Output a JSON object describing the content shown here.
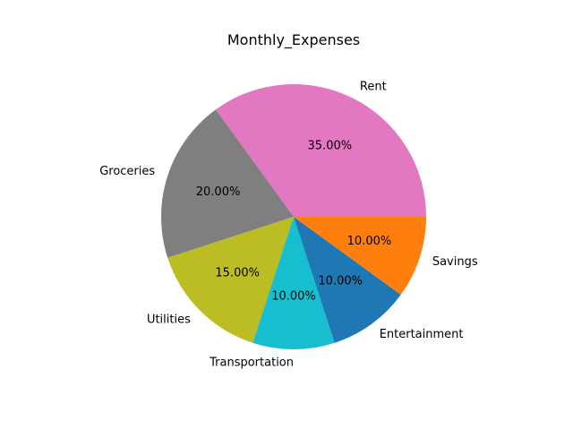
{
  "chart_data": {
    "type": "pie",
    "title": "Monthly_Expenses",
    "categories": [
      "Rent",
      "Groceries",
      "Utilities",
      "Transportation",
      "Entertainment",
      "Savings"
    ],
    "values": [
      35,
      20,
      15,
      10,
      10,
      10
    ],
    "percent_labels": [
      "35.00%",
      "20.00%",
      "15.00%",
      "10.00%",
      "10.00%",
      "10.00%"
    ],
    "colors": [
      "#e377c2",
      "#7f7f7f",
      "#bcbd22",
      "#17becf",
      "#1f77b4",
      "#ff7f0e"
    ],
    "start_angle_deg": 0,
    "direction": "counterclockwise",
    "legend": "none"
  }
}
